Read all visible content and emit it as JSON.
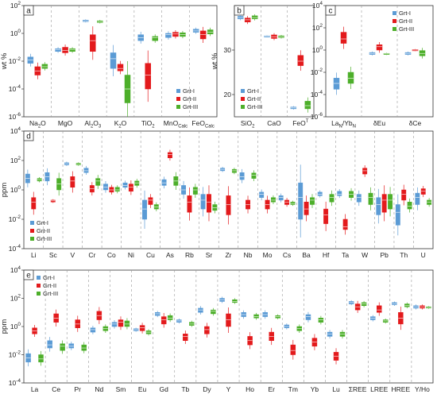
{
  "colors": {
    "grt1": "#5b9bd5",
    "grt2": "#e31a1c",
    "grt3": "#4daf2a"
  },
  "legend": [
    "Grt-I",
    "Grt-II",
    "Grt-III"
  ],
  "chart_data": [
    {
      "panel": "a",
      "type": "box",
      "scale": "log",
      "ylabel": "wt %",
      "ylim": [
        1e-06,
        100.0
      ],
      "yticks": [
        "10^-6",
        "10^-4",
        "10^-2",
        "10^0",
        "10^2"
      ],
      "categories": [
        "Na2O",
        "MgO",
        "Al2O3",
        "K2O",
        "TiO2",
        "MnOCalc",
        "FeOCalc"
      ],
      "legend_position": "bottom-right",
      "series": [
        {
          "name": "Grt-I",
          "boxes": [
            [
              0.007,
              0.012,
              0.02
            ],
            [
              0.05,
              0.07,
              0.08
            ],
            [
              7,
              8,
              9
            ],
            [
              0.003,
              0.015,
              0.04
            ],
            [
              0.3,
              0.5,
              0.8
            ],
            [
              0.5,
              0.8,
              1.0
            ],
            [
              1.2,
              1.5,
              2.0
            ]
          ]
        },
        {
          "name": "Grt-II",
          "boxes": [
            [
              0.001,
              0.002,
              0.004
            ],
            [
              0.04,
              0.06,
              0.1
            ],
            [
              0.05,
              0.3,
              0.8
            ],
            [
              0.002,
              0.003,
              0.006
            ],
            [
              0.0001,
              0.001,
              0.007
            ],
            [
              0.6,
              0.9,
              1.2
            ],
            [
              0.4,
              0.8,
              1.5
            ]
          ]
        },
        {
          "name": "Grt-III",
          "boxes": [
            [
              0.003,
              0.004,
              0.006
            ],
            [
              0.05,
              0.07,
              0.08
            ],
            [
              6,
              7,
              8
            ],
            [
              1e-05,
              0.0001,
              0.001
            ],
            [
              0.3,
              0.5,
              0.6
            ],
            [
              0.6,
              0.8,
              1.1
            ],
            [
              0.9,
              1.2,
              1.8
            ]
          ]
        }
      ]
    },
    {
      "panel": "b",
      "type": "box",
      "scale": "linear",
      "ylabel": "wt %",
      "ylim": [
        15,
        40
      ],
      "yticks": [
        "20",
        "30"
      ],
      "categories": [
        "SiO2",
        "CaO",
        "FeOT"
      ],
      "legend_position": "bottom-left",
      "series": [
        {
          "name": "Grt-I",
          "boxes": [
            [
              37.0,
              37.3,
              37.6
            ],
            [
              33.0,
              33.1,
              33.2
            ],
            [
              16.8,
              17.0,
              17.2
            ]
          ]
        },
        {
          "name": "Grt-II",
          "boxes": [
            [
              36.3,
              36.8,
              37.2
            ],
            [
              32.6,
              33.0,
              33.4
            ],
            [
              26.5,
              27.5,
              28.8
            ]
          ]
        },
        {
          "name": "Grt-III",
          "boxes": [
            [
              37.0,
              37.3,
              37.7
            ],
            [
              32.8,
              33.0,
              33.2
            ],
            [
              16.8,
              17.5,
              18.5
            ]
          ]
        }
      ]
    },
    {
      "panel": "c",
      "type": "box",
      "scale": "log",
      "ylim": [
        1e-06,
        10000.0
      ],
      "yticks": [
        "10^-6",
        "10^-4",
        "10^-2",
        "10^0",
        "10^2",
        "10^4"
      ],
      "categories": [
        "LaN/YbN",
        "δEu",
        "δCe"
      ],
      "legend_position": "top-right",
      "series": [
        {
          "name": "Grt-I",
          "boxes": [
            [
              0.0003,
              0.001,
              0.003
            ],
            [
              0.4,
              0.5,
              0.6
            ],
            [
              0.4,
              0.5,
              0.6
            ]
          ]
        },
        {
          "name": "Grt-II",
          "boxes": [
            [
              4,
              10,
              40
            ],
            [
              1,
              2,
              3
            ],
            [
              0.9,
              1.0,
              1.1
            ]
          ]
        },
        {
          "name": "Grt-III",
          "boxes": [
            [
              0.001,
              0.003,
              0.01
            ],
            [
              0.4,
              0.45,
              0.5
            ],
            [
              0.3,
              0.5,
              0.9
            ]
          ]
        }
      ]
    },
    {
      "panel": "d",
      "type": "box",
      "scale": "log",
      "ylabel": "ppm",
      "ylim": [
        0.0001,
        10000.0
      ],
      "yticks": [
        "10^-4",
        "10^-2",
        "10^0",
        "10^2",
        "10^4"
      ],
      "categories": [
        "Li",
        "Sc",
        "V",
        "Cr",
        "Co",
        "Ni",
        "Cu",
        "As",
        "Rb",
        "Sr",
        "Zr",
        "Nb",
        "Mo",
        "Cs",
        "Ba",
        "Hf",
        "Ta",
        "W",
        "Pb",
        "Th",
        "U"
      ],
      "legend_position": "bottom-left",
      "series": [
        {
          "name": "Grt-I",
          "boxes": [
            [
              3,
              6,
              12
            ],
            [
              4,
              8,
              15
            ],
            [
              50,
              60,
              70
            ],
            [
              15,
              20,
              30
            ],
            [
              1,
              1.5,
              2.5
            ],
            [
              1.5,
              2,
              3
            ],
            [
              0.01,
              0.05,
              0.2
            ],
            [
              2,
              3,
              5
            ],
            [
              0.5,
              1,
              2
            ],
            [
              0.05,
              0.2,
              0.5
            ],
            [
              20,
              25,
              30
            ],
            [
              5,
              8,
              15
            ],
            [
              0.3,
              0.5,
              0.7
            ],
            [
              0.2,
              0.3,
              0.4
            ],
            [
              0.01,
              0.3,
              3
            ],
            [
              0.4,
              0.5,
              0.7
            ],
            [
              0.4,
              0.5,
              0.8
            ],
            [
              0.15,
              0.3,
              0.5
            ],
            [
              0.02,
              0.1,
              0.3
            ],
            [
              0.004,
              0.03,
              0.1
            ],
            [
              0.1,
              0.3,
              0.6
            ]
          ]
        },
        {
          "name": "Grt-II",
          "boxes": [
            [
              0.05,
              0.15,
              0.3
            ],
            [
              0.15,
              0.18,
              0.2
            ],
            [
              1.5,
              4,
              8
            ],
            [
              0.7,
              1.2,
              2
            ],
            [
              0.7,
              1,
              1.5
            ],
            [
              0.8,
              1.5,
              2.5
            ],
            [
              0.1,
              0.2,
              0.3
            ],
            [
              150,
              250,
              350
            ],
            [
              0.03,
              0.15,
              0.4
            ],
            [
              0.03,
              0.15,
              0.5
            ],
            [
              0.02,
              0.1,
              0.4
            ],
            [
              0.05,
              0.1,
              0.2
            ],
            [
              0.05,
              0.1,
              0.2
            ],
            [
              0.1,
              0.15,
              0.2
            ],
            [
              0.02,
              0.05,
              0.15
            ],
            [
              0.005,
              0.02,
              0.05
            ],
            [
              0.002,
              0.003,
              0.01
            ],
            [
              12,
              20,
              30
            ],
            [
              0.03,
              0.2,
              0.5
            ],
            [
              0.2,
              0.5,
              1
            ],
            [
              0.5,
              0.8,
              1.2
            ]
          ]
        },
        {
          "name": "Grt-III",
          "boxes": [
            [
              4,
              5,
              6
            ],
            [
              1,
              2.5,
              6
            ],
            [
              50,
              55,
              65
            ],
            [
              2,
              4,
              6
            ],
            [
              0.8,
              1,
              1.5
            ],
            [
              2,
              3,
              4
            ],
            [
              0.05,
              0.07,
              0.1
            ],
            [
              2,
              4,
              8
            ],
            [
              0.5,
              1,
              1.5
            ],
            [
              0.04,
              0.06,
              0.1
            ],
            [
              15,
              20,
              25
            ],
            [
              6,
              10,
              14
            ],
            [
              0.15,
              0.2,
              0.3
            ],
            [
              0.1,
              0.12,
              0.15
            ],
            [
              0.1,
              0.2,
              0.3
            ],
            [
              0.15,
              0.3,
              0.5
            ],
            [
              0.3,
              0.5,
              0.8
            ],
            [
              0.1,
              0.3,
              0.6
            ],
            [
              0.05,
              0.2,
              0.5
            ],
            [
              0.05,
              0.08,
              0.15
            ],
            [
              0.1,
              0.15,
              0.2
            ]
          ]
        }
      ]
    },
    {
      "panel": "e",
      "type": "box",
      "scale": "log",
      "ylabel": "ppm",
      "ylim": [
        0.0001,
        10000.0
      ],
      "yticks": [
        "10^-4",
        "10^-2",
        "10^0",
        "10^2",
        "10^4"
      ],
      "categories": [
        "La",
        "Ce",
        "Pr",
        "Nd",
        "Sm",
        "Eu",
        "Gd",
        "Tb",
        "Dy",
        "Y",
        "Ho",
        "Er",
        "Tm",
        "Yb",
        "Lu",
        "ΣREE",
        "LREE",
        "HREE",
        "Y/Ho"
      ],
      "legend_position": "top-left",
      "series": [
        {
          "name": "Grt-I",
          "boxes": [
            [
              0.003,
              0.006,
              0.012
            ],
            [
              0.03,
              0.05,
              0.1
            ],
            [
              0.03,
              0.04,
              0.06
            ],
            [
              0.4,
              0.6,
              0.8
            ],
            [
              1,
              1.5,
              2
            ],
            [
              0.5,
              0.6,
              0.7
            ],
            [
              6,
              8,
              10
            ],
            [
              2,
              2.5,
              3
            ],
            [
              10,
              15,
              20
            ],
            [
              60,
              80,
              100
            ],
            [
              5,
              7,
              10
            ],
            [
              5,
              7,
              10
            ],
            [
              0.8,
              1,
              1.3
            ],
            [
              3,
              5,
              7
            ],
            [
              0.2,
              0.3,
              0.4
            ],
            [
              40,
              50,
              60
            ],
            [
              3,
              4,
              5
            ],
            [
              35,
              40,
              50
            ],
            [
              20,
              25,
              30
            ]
          ]
        },
        {
          "name": "Grt-II",
          "boxes": [
            [
              0.3,
              0.5,
              0.8
            ],
            [
              2,
              4,
              8
            ],
            [
              0.8,
              1.5,
              3
            ],
            [
              3,
              6,
              12
            ],
            [
              1,
              2,
              3
            ],
            [
              0.5,
              0.8,
              1.2
            ],
            [
              1.5,
              3,
              5
            ],
            [
              0.1,
              0.2,
              0.3
            ],
            [
              0.3,
              0.6,
              1
            ],
            [
              1,
              3,
              8
            ],
            [
              0.05,
              0.1,
              0.2
            ],
            [
              0.1,
              0.2,
              0.4
            ],
            [
              0.01,
              0.02,
              0.05
            ],
            [
              0.04,
              0.08,
              0.15
            ],
            [
              0.004,
              0.008,
              0.015
            ],
            [
              15,
              25,
              40
            ],
            [
              10,
              15,
              30
            ],
            [
              1.5,
              4,
              10
            ],
            [
              20,
              25,
              30
            ]
          ]
        },
        {
          "name": "Grt-III",
          "boxes": [
            [
              0.003,
              0.005,
              0.01
            ],
            [
              0.02,
              0.04,
              0.06
            ],
            [
              0.02,
              0.03,
              0.05
            ],
            [
              0.5,
              0.7,
              1
            ],
            [
              1,
              1.5,
              2.5
            ],
            [
              0.3,
              0.4,
              0.5
            ],
            [
              3,
              4,
              6
            ],
            [
              1.2,
              1.5,
              2
            ],
            [
              8,
              12,
              15
            ],
            [
              50,
              60,
              80
            ],
            [
              4,
              5,
              7
            ],
            [
              4,
              5,
              6
            ],
            [
              0.5,
              0.7,
              1
            ],
            [
              2,
              3,
              4
            ],
            [
              0.2,
              0.3,
              0.4
            ],
            [
              30,
              40,
              50
            ],
            [
              2,
              2.5,
              3
            ],
            [
              25,
              30,
              40
            ],
            [
              20,
              22,
              25
            ]
          ]
        }
      ]
    }
  ]
}
